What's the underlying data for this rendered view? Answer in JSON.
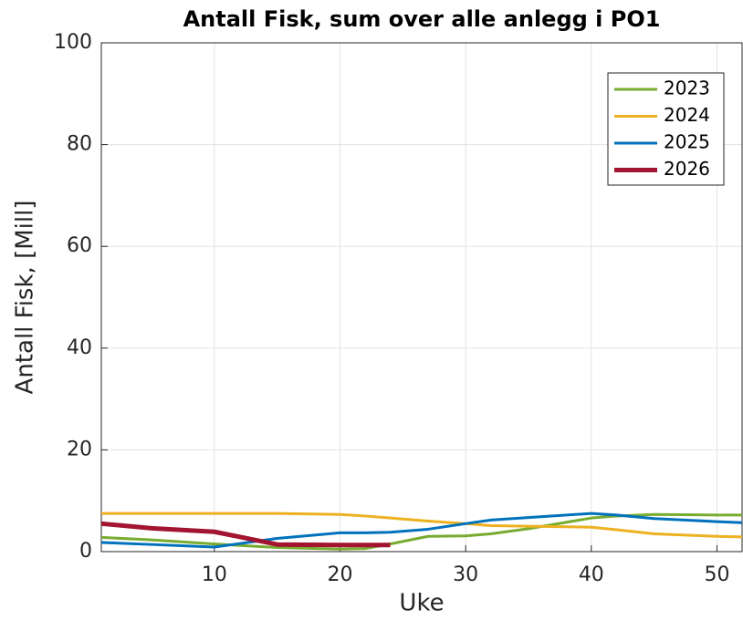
{
  "chart_data": {
    "type": "line",
    "title": "Antall Fisk, sum over alle anlegg i PO1",
    "x_label": "Uke",
    "y_label": "Antall Fisk, [Mill]",
    "x": [
      1,
      5,
      10,
      15,
      20,
      22,
      24,
      27,
      30,
      32,
      35,
      40,
      42,
      45,
      50,
      52
    ],
    "series": [
      {
        "name": "2023",
        "color": "#77ac30",
        "linewidth": 3,
        "values": [
          2.8,
          2.3,
          1.5,
          0.8,
          0.5,
          0.6,
          1.5,
          3.0,
          3.1,
          3.5,
          4.5,
          6.6,
          7.0,
          7.3,
          7.2,
          7.2
        ]
      },
      {
        "name": "2024",
        "color": "#edb120",
        "linewidth": 3,
        "values": [
          7.5,
          7.5,
          7.5,
          7.5,
          7.3,
          7.0,
          6.6,
          6.0,
          5.5,
          5.1,
          5.0,
          4.8,
          4.3,
          3.5,
          3.0,
          2.9
        ]
      },
      {
        "name": "2025",
        "color": "#0072bd",
        "linewidth": 3,
        "values": [
          1.8,
          1.4,
          0.9,
          2.6,
          3.7,
          3.7,
          3.8,
          4.4,
          5.5,
          6.2,
          6.7,
          7.5,
          7.2,
          6.5,
          5.9,
          5.7
        ]
      },
      {
        "name": "2026",
        "color": "#a2142f",
        "linewidth": 5,
        "values": [
          5.5,
          4.6,
          3.9,
          1.4,
          1.3,
          1.3,
          1.3,
          null,
          null,
          null,
          null,
          null,
          null,
          null,
          null,
          null
        ]
      }
    ],
    "xlim": [
      1,
      52
    ],
    "xticks": [
      10,
      20,
      30,
      40,
      50
    ],
    "ylim": [
      0,
      100
    ],
    "yticks": [
      0,
      20,
      40,
      60,
      80,
      100
    ],
    "grid": true,
    "legend_position": "top-right"
  }
}
